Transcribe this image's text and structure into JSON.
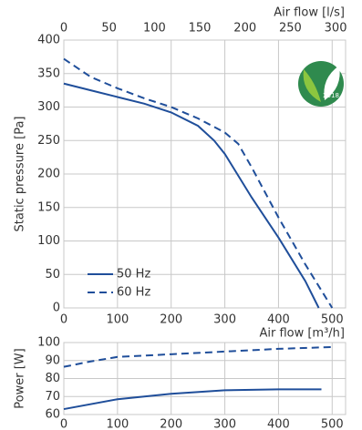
{
  "chart_data": [
    {
      "type": "line",
      "ylabel": "Static pressure [Pa]",
      "xlabel": "Air flow [m³/h]",
      "x2label": "Air flow [l/s]",
      "xlim": [
        0,
        525
      ],
      "xticks": [
        0,
        100,
        200,
        300,
        400,
        500
      ],
      "x2lim": [
        0,
        311
      ],
      "x2ticks": [
        0,
        50,
        100,
        150,
        200,
        250,
        300
      ],
      "ylim": [
        0,
        400
      ],
      "yticks": [
        0,
        50,
        100,
        150,
        200,
        250,
        300,
        350,
        400
      ],
      "grid": true,
      "series": [
        {
          "name": "50 Hz",
          "color": "#1f4e9a",
          "dash": false,
          "x": [
            0,
            50,
            100,
            150,
            200,
            250,
            280,
            300,
            350,
            400,
            450,
            475
          ],
          "values": [
            335,
            325,
            315,
            305,
            292,
            272,
            250,
            230,
            165,
            105,
            40,
            0
          ]
        },
        {
          "name": "60 Hz",
          "color": "#1f4e9a",
          "dash": true,
          "x": [
            0,
            50,
            100,
            150,
            200,
            250,
            300,
            325,
            350,
            400,
            450,
            500
          ],
          "values": [
            372,
            345,
            328,
            313,
            300,
            283,
            262,
            245,
            210,
            135,
            65,
            0
          ]
        }
      ],
      "badge": {
        "title": "ErP",
        "year": "2018"
      }
    },
    {
      "type": "line",
      "ylabel": "Power [W]",
      "xlim": [
        0,
        525
      ],
      "xticks": [
        0,
        100,
        200,
        300,
        400,
        500
      ],
      "ylim": [
        60,
        100
      ],
      "yticks": [
        60,
        70,
        80,
        90,
        100
      ],
      "grid": true,
      "series": [
        {
          "color": "#1f4e9a",
          "dash": false,
          "x": [
            0,
            100,
            200,
            300,
            400,
            480
          ],
          "values": [
            63,
            68.5,
            71.5,
            73.5,
            74,
            74
          ]
        },
        {
          "color": "#1f4e9a",
          "dash": true,
          "x": [
            0,
            50,
            100,
            200,
            300,
            400,
            500
          ],
          "values": [
            86.5,
            89.5,
            92,
            93.5,
            95,
            96.5,
            97.5
          ]
        }
      ]
    }
  ]
}
